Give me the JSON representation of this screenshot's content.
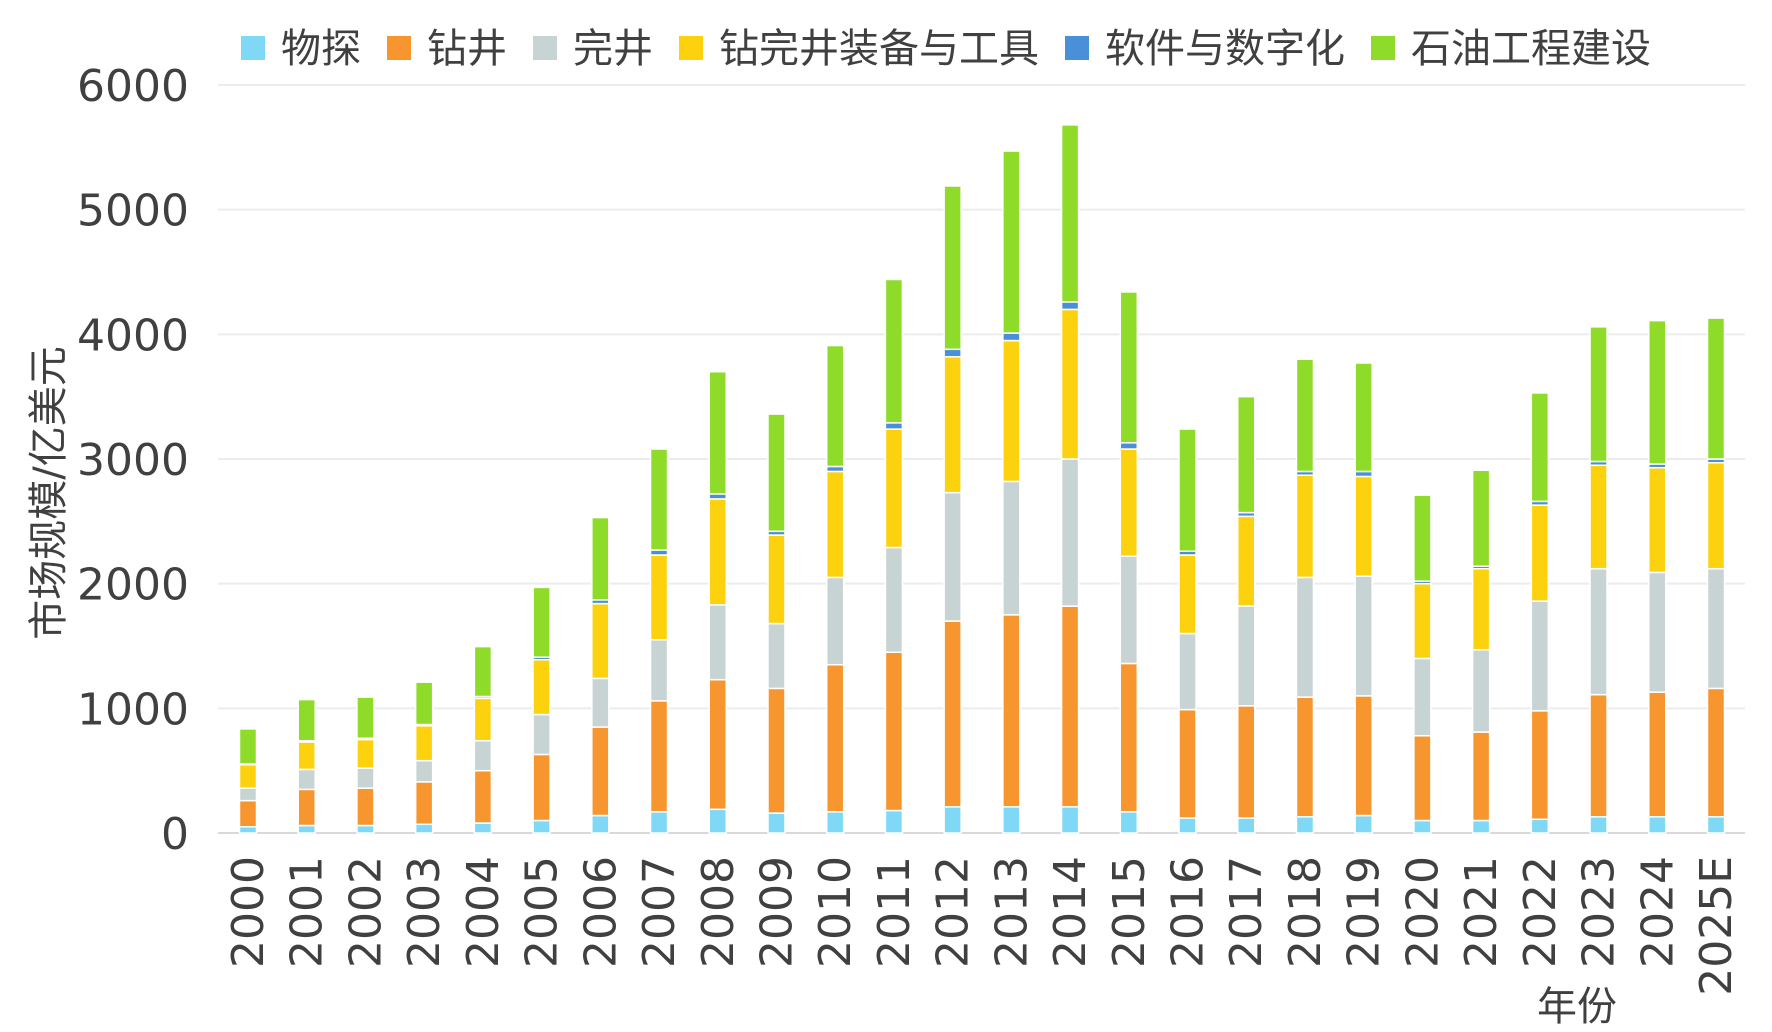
{
  "chart_data": {
    "type": "bar",
    "stacked": true,
    "title": "",
    "xlabel": "年份",
    "ylabel": "市场规模/亿美元",
    "ylim": [
      0,
      6000
    ],
    "yticks": [
      0,
      1000,
      2000,
      3000,
      4000,
      5000,
      6000
    ],
    "grid": true,
    "legend_position": "top",
    "categories": [
      "2000",
      "2001",
      "2002",
      "2003",
      "2004",
      "2005",
      "2006",
      "2007",
      "2008",
      "2009",
      "2010",
      "2011",
      "2012",
      "2013",
      "2014",
      "2015",
      "2016",
      "2017",
      "2018",
      "2019",
      "2020",
      "2021",
      "2022",
      "2023",
      "2024",
      "2025E"
    ],
    "series": [
      {
        "name": "物探",
        "color": "#7fd8f5",
        "values": [
          50,
          60,
          60,
          70,
          80,
          100,
          140,
          170,
          190,
          160,
          170,
          180,
          210,
          210,
          210,
          170,
          120,
          120,
          130,
          140,
          100,
          100,
          110,
          130,
          130,
          130
        ]
      },
      {
        "name": "钻井",
        "color": "#f7962f",
        "values": [
          210,
          290,
          300,
          340,
          420,
          530,
          710,
          890,
          1040,
          1000,
          1180,
          1270,
          1490,
          1540,
          1610,
          1190,
          870,
          900,
          960,
          960,
          680,
          710,
          870,
          980,
          1000,
          1030
        ]
      },
      {
        "name": "完井",
        "color": "#c8d3d3",
        "values": [
          100,
          160,
          160,
          170,
          240,
          320,
          390,
          490,
          600,
          520,
          700,
          840,
          1030,
          1070,
          1180,
          860,
          610,
          800,
          960,
          960,
          620,
          660,
          880,
          1010,
          960,
          960
        ]
      },
      {
        "name": "钻完井装备与工具",
        "color": "#fcd20f",
        "values": [
          190,
          220,
          230,
          280,
          340,
          440,
          600,
          680,
          850,
          710,
          850,
          950,
          1090,
          1130,
          1200,
          860,
          630,
          720,
          820,
          800,
          600,
          650,
          770,
          830,
          840,
          850
        ]
      },
      {
        "name": "软件与数字化",
        "color": "#4a90d9",
        "values": [
          5,
          10,
          10,
          10,
          15,
          20,
          30,
          40,
          40,
          30,
          40,
          50,
          60,
          60,
          60,
          50,
          30,
          30,
          30,
          40,
          20,
          20,
          30,
          30,
          30,
          30
        ]
      },
      {
        "name": "石油工程建设",
        "color": "#8fdb29",
        "values": [
          280,
          330,
          330,
          340,
          400,
          560,
          660,
          810,
          980,
          940,
          970,
          1150,
          1310,
          1460,
          1420,
          1210,
          980,
          930,
          900,
          870,
          690,
          770,
          870,
          1080,
          1150,
          1130
        ]
      }
    ]
  }
}
